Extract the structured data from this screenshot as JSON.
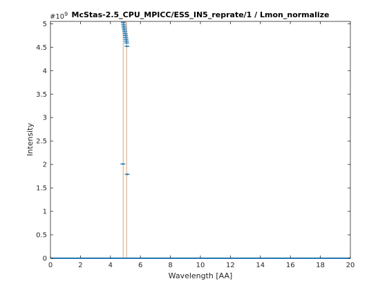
{
  "chart_data": {
    "type": "scatter",
    "title": "McStas-2.5_CPU_MPICC/ESS_IN5_reprate/1 / Lmon_normalize",
    "xlabel": "Wavelength [AA]",
    "ylabel": "Intensity",
    "y_multiplier_label": "#10",
    "y_multiplier_exponent": "9",
    "xlim": [
      0,
      20
    ],
    "ylim": [
      0,
      5.05
    ],
    "xticks": [
      0,
      2,
      4,
      6,
      8,
      10,
      12,
      14,
      16,
      18,
      20
    ],
    "xtick_labels": [
      "0",
      "2",
      "4",
      "6",
      "8",
      "10",
      "12",
      "14",
      "16",
      "18",
      "20"
    ],
    "yticks": [
      0,
      0.5,
      1,
      1.5,
      2,
      2.5,
      3,
      3.5,
      4,
      4.5,
      5
    ],
    "ytick_labels": [
      "0",
      "0.5",
      "1",
      "1.5",
      "2",
      "2.5",
      "3",
      "3.5",
      "4",
      "4.5",
      "5"
    ],
    "grid": false,
    "colors": {
      "points": "#1f77b4",
      "stems": "#d9a37c",
      "axes": "#262626"
    },
    "series": [
      {
        "x": [
          4.83,
          4.86,
          4.88,
          4.9,
          4.92,
          4.94,
          4.96,
          4.98,
          5.0,
          5.02,
          5.04,
          5.06,
          5.08,
          5.1,
          5.12
        ],
        "y": [
          2.01,
          5.03,
          4.99,
          4.95,
          4.91,
          4.87,
          4.83,
          4.79,
          4.75,
          4.71,
          4.67,
          4.63,
          4.59,
          4.52,
          1.79
        ]
      }
    ],
    "baseline_x_range": [
      0,
      20
    ],
    "baseline_y": 0,
    "stems_x": [
      4.85,
      5.08
    ]
  }
}
